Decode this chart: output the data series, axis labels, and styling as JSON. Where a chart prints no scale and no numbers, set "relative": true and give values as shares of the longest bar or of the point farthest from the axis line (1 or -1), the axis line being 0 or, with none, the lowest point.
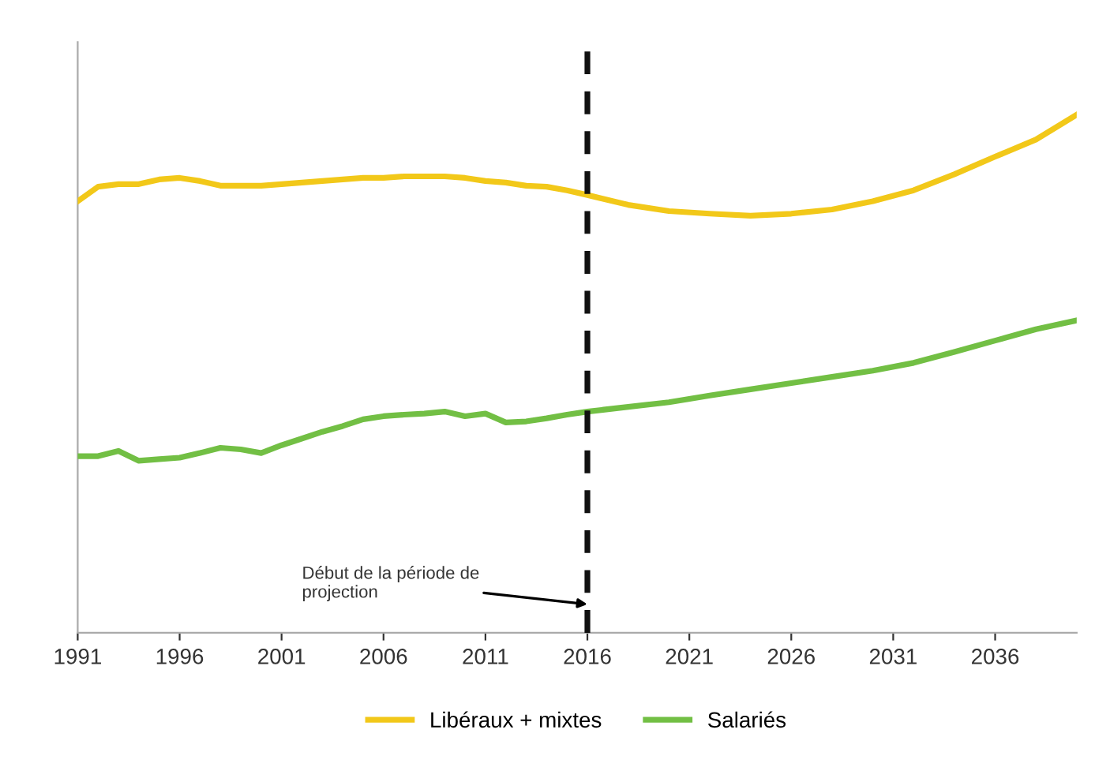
{
  "chart_data": {
    "type": "line",
    "relative": true,
    "legend": "bottom",
    "line_style": "solid",
    "marker": "none",
    "xlim": [
      1991,
      2040
    ],
    "xticks": [
      1991,
      1996,
      2001,
      2006,
      2011,
      2016,
      2021,
      2026,
      2031,
      2036
    ],
    "x": [
      1991,
      1992,
      1993,
      1994,
      1995,
      1996,
      1997,
      1998,
      1999,
      2000,
      2001,
      2002,
      2003,
      2004,
      2005,
      2006,
      2007,
      2008,
      2009,
      2010,
      2011,
      2012,
      2013,
      2014,
      2015,
      2016,
      2018,
      2020,
      2022,
      2024,
      2026,
      2028,
      2030,
      2032,
      2034,
      2036,
      2038,
      2040
    ],
    "series": [
      {
        "name": "Libéraux + mixtes",
        "color": "#f2c819",
        "values": [
          0.833,
          0.861,
          0.866,
          0.866,
          0.875,
          0.878,
          0.872,
          0.863,
          0.863,
          0.863,
          0.866,
          0.869,
          0.872,
          0.875,
          0.878,
          0.878,
          0.881,
          0.881,
          0.881,
          0.878,
          0.872,
          0.869,
          0.863,
          0.861,
          0.854,
          0.845,
          0.826,
          0.814,
          0.809,
          0.805,
          0.809,
          0.817,
          0.833,
          0.854,
          0.885,
          0.919,
          0.952,
          1
        ]
      },
      {
        "name": "Salariés",
        "color": "#72bf44",
        "values": [
          0.341,
          0.341,
          0.351,
          0.332,
          0.335,
          0.338,
          0.347,
          0.357,
          0.354,
          0.347,
          0.362,
          0.375,
          0.388,
          0.399,
          0.412,
          0.418,
          0.421,
          0.423,
          0.427,
          0.418,
          0.423,
          0.406,
          0.408,
          0.414,
          0.421,
          0.427,
          0.436,
          0.445,
          0.458,
          0.47,
          0.482,
          0.494,
          0.506,
          0.521,
          0.542,
          0.564,
          0.586,
          0.603
        ]
      }
    ],
    "ref_lines": [
      {
        "axis": "x",
        "value": 2016,
        "color": "#111111",
        "line_style": "dashed"
      }
    ],
    "annotations": [
      {
        "text": "Début de la période de\nprojection",
        "x": 2016,
        "y": 0.055
      }
    ]
  }
}
